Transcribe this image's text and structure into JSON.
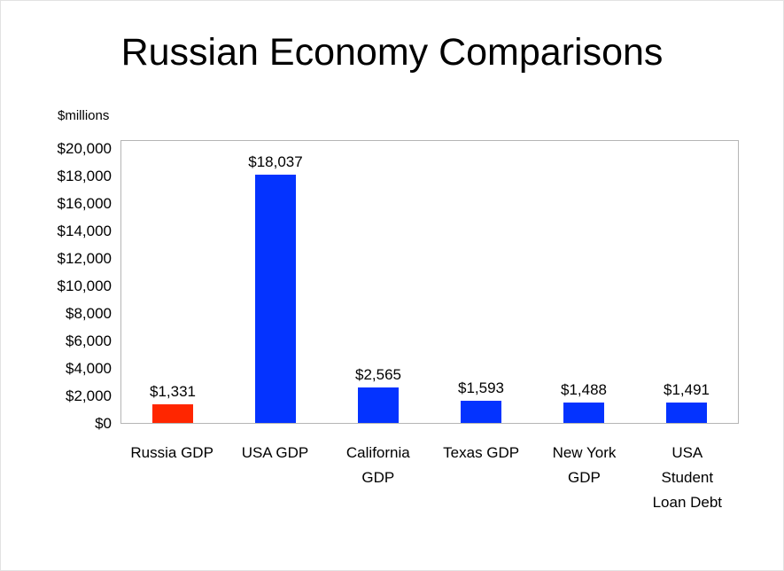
{
  "chart_data": {
    "type": "bar",
    "title": "Russian Economy Comparisons",
    "unit_label": "$millions",
    "categories": [
      "Russia GDP",
      "USA GDP",
      "California GDP",
      "Texas GDP",
      "New York GDP",
      "USA Student Loan Debt"
    ],
    "category_display": [
      "Russia GDP",
      "USA GDP",
      "California\nGDP",
      "Texas GDP",
      "New York\nGDP",
      "USA\nStudent\nLoan Debt"
    ],
    "values": [
      1331,
      18037,
      2565,
      1593,
      1488,
      1491
    ],
    "data_labels": [
      "$1,331",
      "$18,037",
      "$2,565",
      "$1,593",
      "$1,488",
      "$1,491"
    ],
    "bar_colors": [
      "#ff2600",
      "#0433ff",
      "#0433ff",
      "#0433ff",
      "#0433ff",
      "#0433ff"
    ],
    "y_ticks": [
      "$0",
      "$2,000",
      "$4,000",
      "$6,000",
      "$8,000",
      "$10,000",
      "$12,000",
      "$14,000",
      "$16,000",
      "$18,000",
      "$20,000"
    ],
    "ylim": [
      0,
      20000
    ],
    "grid": false,
    "legend": "none",
    "xlabel": "",
    "ylabel": "$millions"
  }
}
